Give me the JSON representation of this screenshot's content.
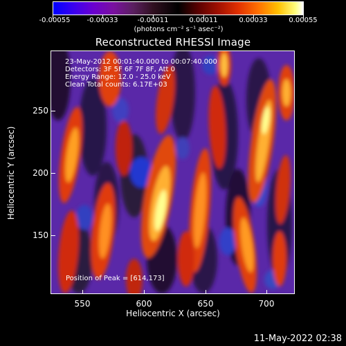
{
  "colorbar": {
    "ticks": [
      "-0.00055",
      "-0.00033",
      "-0.00011",
      "0.00011",
      "0.00033",
      "0.00055"
    ],
    "units": "(photons cm⁻² s⁻¹ asec⁻²)"
  },
  "title": "Reconstructed RHESSI Image",
  "info": {
    "line1": "23-May-2012 00:01:40.000 to 00:07:40.000",
    "line2": "Detectors: 3F 5F 6F 7F 8F, Att 0",
    "line3": "Energy Range: 12.0 - 25.0 keV",
    "line4": "Clean     Total counts: 6.17E+03"
  },
  "peak": "Position of Peak = [614,173]",
  "x_axis": {
    "label": "Heliocentric X (arcsec)",
    "ticks": [
      "550",
      "600",
      "650",
      "700"
    ]
  },
  "y_axis": {
    "label": "Heliocentric Y (arcsec)",
    "ticks": [
      "250",
      "200",
      "150"
    ]
  },
  "footer_date": "11-May-2022 02:38"
}
